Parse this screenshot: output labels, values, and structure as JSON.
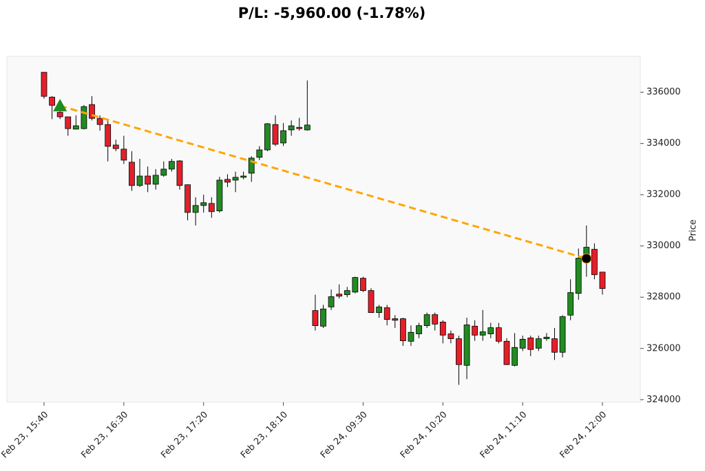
{
  "chart_data": {
    "type": "candlestick",
    "title": "P/L: -5,960.00 (-1.78%)",
    "y_label": "Price",
    "categories": [
      "Feb 23, 15:40",
      null,
      null,
      null,
      null,
      null,
      null,
      null,
      null,
      null,
      "Feb 23, 16:30",
      null,
      null,
      null,
      null,
      null,
      null,
      null,
      null,
      null,
      "Feb 23, 17:20",
      null,
      null,
      null,
      null,
      null,
      null,
      null,
      null,
      null,
      "Feb 23, 18:10",
      null,
      null,
      null,
      null,
      null,
      null,
      null,
      null,
      null,
      "Feb 24, 09:30",
      null,
      null,
      null,
      null,
      null,
      null,
      null,
      null,
      null,
      "Feb 24, 10:20",
      null,
      null,
      null,
      null,
      null,
      null,
      null,
      null,
      null,
      "Feb 24, 11:10",
      null,
      null,
      null,
      null,
      null,
      null,
      null,
      null,
      null,
      "Feb 24, 12:00"
    ],
    "open": [
      336780,
      335810,
      335220,
      335040,
      334560,
      334580,
      335520,
      334980,
      334740,
      333940,
      333780,
      333270,
      332360,
      332730,
      332410,
      332760,
      333000,
      333320,
      332390,
      331310,
      331580,
      331660,
      331370,
      332600,
      332570,
      332680,
      332840,
      333460,
      333750,
      334740,
      334020,
      334530,
      334630,
      334530,
      327480,
      326870,
      327620,
      328120,
      328100,
      328200,
      328740,
      328260,
      327400,
      327590,
      327160,
      327160,
      326280,
      326570,
      326890,
      327320,
      327030,
      326570,
      326380,
      325340,
      326870,
      326520,
      326570,
      326810,
      326280,
      325340,
      326010,
      326410,
      326010,
      326380,
      326380,
      325850,
      327300,
      328150,
      329480,
      329870,
      328980
    ],
    "high": [
      336780,
      335850,
      335400,
      335040,
      335100,
      335500,
      335850,
      335100,
      334900,
      334150,
      334300,
      333700,
      333400,
      333100,
      333000,
      333300,
      333400,
      333350,
      332400,
      331900,
      332000,
      331900,
      332700,
      332800,
      332900,
      332900,
      333500,
      333900,
      334800,
      335100,
      334800,
      334900,
      335000,
      336460,
      328100,
      327700,
      328300,
      328500,
      328400,
      328800,
      328800,
      328350,
      327700,
      327700,
      327300,
      327200,
      326900,
      327000,
      327400,
      327400,
      327100,
      326700,
      326500,
      327200,
      327100,
      327500,
      327000,
      327000,
      326400,
      326600,
      326500,
      326500,
      326500,
      326600,
      326800,
      327300,
      328700,
      329900,
      330800,
      330100,
      328980
    ],
    "low": [
      335750,
      334950,
      334950,
      334300,
      334550,
      334550,
      334900,
      334500,
      333300,
      333700,
      333200,
      332150,
      332300,
      332100,
      332200,
      332700,
      332900,
      332200,
      331000,
      330800,
      331300,
      331100,
      331300,
      332300,
      332100,
      332600,
      332500,
      333350,
      333700,
      333900,
      333900,
      334300,
      334500,
      334500,
      326700,
      326800,
      327500,
      327950,
      328000,
      328150,
      328200,
      327400,
      327200,
      326900,
      326800,
      326100,
      326100,
      326400,
      326800,
      326700,
      326200,
      326200,
      324580,
      324800,
      326300,
      326300,
      326400,
      326200,
      325350,
      325300,
      325900,
      325700,
      325900,
      326300,
      325550,
      325650,
      327100,
      327900,
      328800,
      328700,
      328100
    ],
    "close": [
      335840,
      335490,
      335040,
      334580,
      334690,
      335440,
      334980,
      334740,
      333890,
      333800,
      333350,
      332360,
      332730,
      332410,
      332760,
      333000,
      333300,
      332360,
      331310,
      331580,
      331690,
      331340,
      332570,
      332490,
      332680,
      332730,
      333430,
      333750,
      334770,
      333970,
      334500,
      334690,
      334580,
      334720,
      326890,
      327540,
      328020,
      328040,
      328260,
      328770,
      328260,
      327400,
      327620,
      327130,
      327100,
      326300,
      326630,
      326890,
      327320,
      326950,
      326520,
      326380,
      325370,
      326920,
      326520,
      326650,
      326810,
      326280,
      325370,
      326040,
      326360,
      325960,
      326380,
      326440,
      325850,
      327240,
      328180,
      329520,
      329950,
      328880,
      328340
    ],
    "entry": [
      null,
      null,
      335470,
      null,
      null,
      null,
      null,
      null,
      null,
      null,
      null,
      null,
      null,
      null,
      null,
      null,
      null,
      null,
      null,
      null,
      null,
      null,
      null,
      null,
      null,
      null,
      null,
      null,
      null,
      null,
      null,
      null,
      null,
      null,
      null,
      null,
      null,
      null,
      null,
      null,
      null,
      null,
      null,
      null,
      null,
      null,
      null,
      null,
      null,
      null,
      null,
      null,
      null,
      null,
      null,
      null,
      null,
      null,
      null,
      null,
      null,
      null,
      null,
      null,
      null,
      null,
      null,
      null,
      null,
      null,
      null
    ],
    "exit": [
      null,
      null,
      null,
      null,
      null,
      null,
      null,
      null,
      null,
      null,
      null,
      null,
      null,
      null,
      null,
      null,
      null,
      null,
      null,
      null,
      null,
      null,
      null,
      null,
      null,
      null,
      null,
      null,
      null,
      null,
      null,
      null,
      null,
      null,
      null,
      null,
      null,
      null,
      null,
      null,
      null,
      null,
      null,
      null,
      null,
      null,
      null,
      null,
      null,
      null,
      null,
      null,
      null,
      null,
      null,
      null,
      null,
      null,
      null,
      null,
      null,
      null,
      null,
      null,
      null,
      null,
      null,
      null,
      329510,
      null,
      null
    ],
    "up_color": "#228b22",
    "down_color": "#e3202a",
    "entry_color": "#1e8c1e",
    "exit_color": "#000000",
    "trade_line_color": "#ffa500",
    "ylim": [
      323900,
      337400
    ],
    "yticks": [
      324000,
      326000,
      328000,
      330000,
      332000,
      334000,
      336000
    ]
  }
}
